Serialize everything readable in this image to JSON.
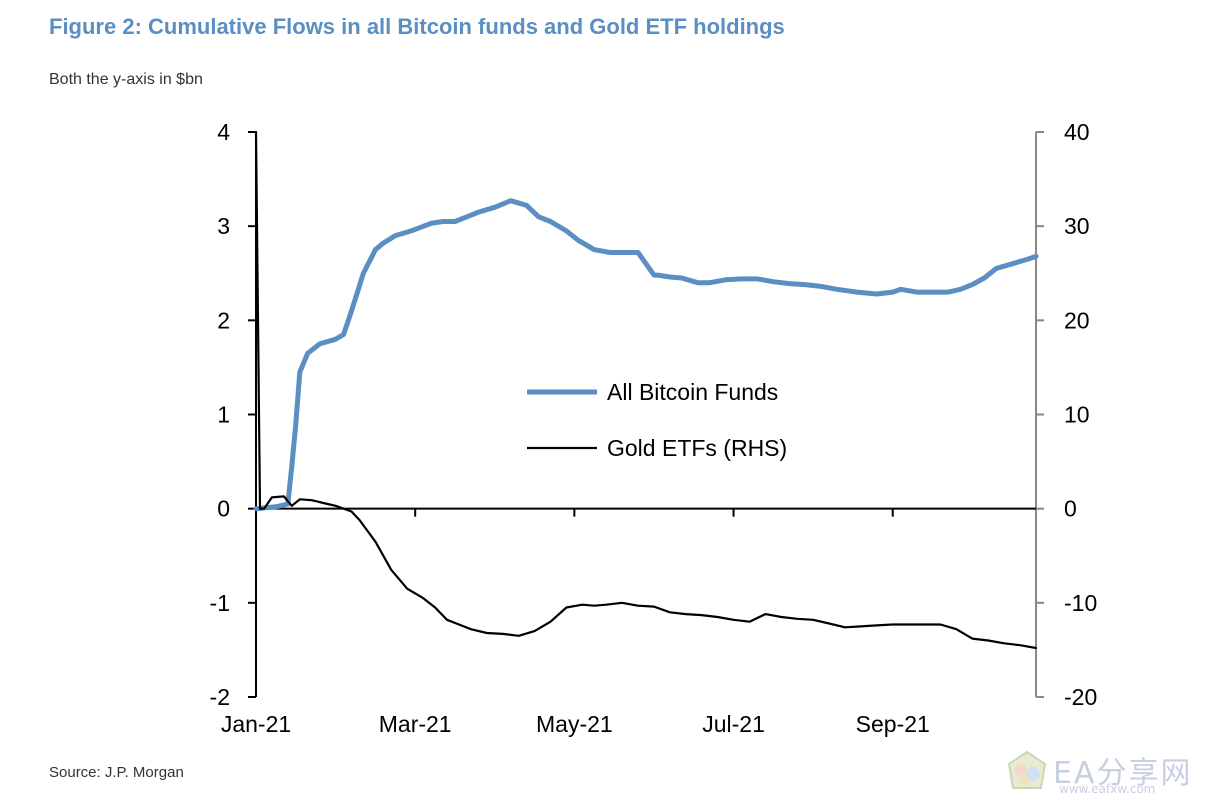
{
  "figure": {
    "title": "Figure 2: Cumulative Flows in all Bitcoin funds and Gold ETF holdings",
    "subtitle": "Both the y-axis in $bn",
    "source": "Source: J.P. Morgan"
  },
  "watermark": {
    "text": "EA分享网",
    "url": "www.eafxw.com"
  },
  "chart_data": {
    "type": "line",
    "x_tick_labels": [
      "Jan-21",
      "Mar-21",
      "May-21",
      "Jul-21",
      "Sep-21"
    ],
    "x_tick_months": [
      1,
      3,
      5,
      7,
      9
    ],
    "x_range_months": [
      1,
      10.8
    ],
    "y_left": {
      "ticks": [
        "4",
        "3",
        "2",
        "1",
        "0",
        "-1",
        "-2"
      ],
      "range": [
        -2,
        4
      ]
    },
    "y_right": {
      "ticks": [
        "40",
        "30",
        "20",
        "10",
        "0",
        "-10",
        "-20"
      ],
      "range": [
        -20,
        40
      ]
    },
    "legend_placement": "center",
    "series": [
      {
        "name": "All Bitcoin Funds",
        "axis": "left",
        "color": "#5b8ec2",
        "x_months": [
          1.0,
          1.25,
          1.4,
          1.45,
          1.5,
          1.55,
          1.65,
          1.8,
          2.0,
          2.1,
          2.2,
          2.35,
          2.5,
          2.6,
          2.75,
          2.95,
          3.2,
          3.35,
          3.5,
          3.65,
          3.8,
          4.0,
          4.2,
          4.4,
          4.55,
          4.7,
          4.9,
          5.05,
          5.25,
          5.45,
          5.6,
          5.8,
          6.0,
          6.05,
          6.2,
          6.35,
          6.55,
          6.7,
          6.9,
          7.1,
          7.3,
          7.5,
          7.7,
          7.9,
          8.1,
          8.3,
          8.55,
          8.8,
          9.0,
          9.1,
          9.3,
          9.5,
          9.7,
          9.85,
          10.0,
          10.15,
          10.3,
          10.5,
          10.7,
          10.8
        ],
        "values": [
          0.0,
          0.02,
          0.05,
          0.45,
          0.9,
          1.45,
          1.65,
          1.75,
          1.8,
          1.85,
          2.1,
          2.5,
          2.75,
          2.82,
          2.9,
          2.95,
          3.03,
          3.05,
          3.05,
          3.1,
          3.15,
          3.2,
          3.27,
          3.22,
          3.1,
          3.05,
          2.95,
          2.85,
          2.75,
          2.72,
          2.72,
          2.72,
          2.48,
          2.48,
          2.46,
          2.45,
          2.4,
          2.4,
          2.43,
          2.44,
          2.44,
          2.41,
          2.39,
          2.38,
          2.36,
          2.33,
          2.3,
          2.28,
          2.3,
          2.33,
          2.3,
          2.3,
          2.3,
          2.33,
          2.38,
          2.45,
          2.55,
          2.6,
          2.65,
          2.68
        ]
      },
      {
        "name": "Gold ETFs (RHS)",
        "axis": "right",
        "color": "#000000",
        "x_months": [
          1.0,
          1.05,
          1.1,
          1.2,
          1.35,
          1.45,
          1.55,
          1.7,
          1.9,
          2.0,
          2.2,
          2.3,
          2.5,
          2.7,
          2.9,
          3.1,
          3.25,
          3.4,
          3.55,
          3.7,
          3.9,
          4.1,
          4.3,
          4.5,
          4.7,
          4.9,
          5.1,
          5.25,
          5.4,
          5.6,
          5.8,
          6.0,
          6.2,
          6.4,
          6.6,
          6.8,
          7.0,
          7.2,
          7.4,
          7.6,
          7.8,
          8.0,
          8.2,
          8.4,
          8.6,
          8.8,
          9.0,
          9.2,
          9.4,
          9.6,
          9.8,
          10.0,
          10.2,
          10.4,
          10.6,
          10.8
        ],
        "values": [
          40.0,
          0.0,
          0.0,
          1.2,
          1.3,
          0.3,
          1.0,
          0.9,
          0.5,
          0.3,
          -0.3,
          -1.2,
          -3.5,
          -6.5,
          -8.5,
          -9.5,
          -10.5,
          -11.8,
          -12.3,
          -12.8,
          -13.2,
          -13.3,
          -13.5,
          -13.0,
          -12.0,
          -10.5,
          -10.2,
          -10.3,
          -10.2,
          -10.0,
          -10.3,
          -10.4,
          -11.0,
          -11.2,
          -11.3,
          -11.5,
          -11.8,
          -12.0,
          -11.2,
          -11.5,
          -11.7,
          -11.8,
          -12.2,
          -12.6,
          -12.5,
          -12.4,
          -12.3,
          -12.3,
          -12.3,
          -12.3,
          -12.8,
          -13.8,
          -14.0,
          -14.3,
          -14.5,
          -14.8
        ]
      }
    ]
  }
}
